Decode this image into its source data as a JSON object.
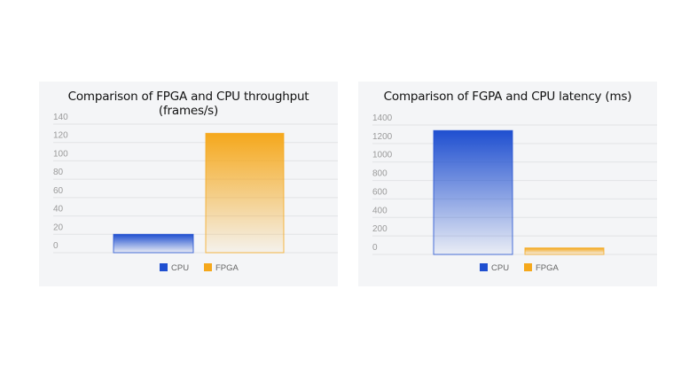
{
  "chart_data": [
    {
      "type": "bar",
      "title": "Comparison of FPGA and CPU throughput (frames/s)",
      "categories": [
        "CPU",
        "FPGA"
      ],
      "values": [
        20,
        130
      ],
      "colors": [
        "#1f4fd0",
        "#f5a81c"
      ],
      "ylim": [
        0,
        140
      ],
      "yticks": [
        0,
        20,
        40,
        60,
        80,
        100,
        120,
        140
      ],
      "grid": true,
      "legend": {
        "position": "bottom",
        "entries": [
          "CPU",
          "FPGA"
        ]
      }
    },
    {
      "type": "bar",
      "title": "Comparison of FGPA and CPU latency (ms)",
      "categories": [
        "CPU",
        "FPGA"
      ],
      "values": [
        1340,
        70
      ],
      "colors": [
        "#1f4fd0",
        "#f5a81c"
      ],
      "ylim": [
        0,
        1400
      ],
      "yticks": [
        0,
        200,
        400,
        600,
        800,
        1000,
        1200,
        1400
      ],
      "grid": true,
      "legend": {
        "position": "bottom",
        "entries": [
          "CPU",
          "FPGA"
        ]
      }
    }
  ]
}
